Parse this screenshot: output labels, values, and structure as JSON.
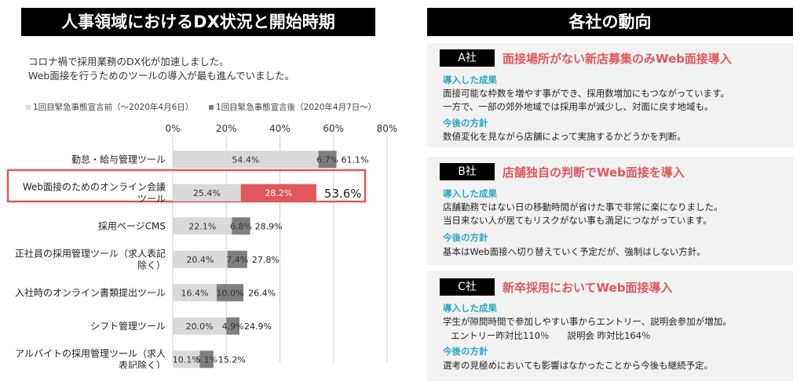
{
  "left_title": "人事領域におけるDX状況と開始時期",
  "intro": {
    "line1": "コロナ禍で採用業務のDX化が加速しました。",
    "line2": "Web面接を行うためのツールの導入が最も進んでいました。"
  },
  "legend": {
    "before": "1回目緊急事態宣言前（～2020年4月6日）",
    "after": "1回目緊急事態宣言後（2020年4月7日～）"
  },
  "colors": {
    "before": "#d9d9d9",
    "after": "#7f7f7f",
    "highlight": "#e0585c"
  },
  "chart_data": {
    "type": "bar",
    "orientation": "horizontal",
    "stacked": true,
    "x_ticks": [
      "0%",
      "20%",
      "40%",
      "60%",
      "80%"
    ],
    "xlim": [
      0,
      80
    ],
    "categories": [
      "勤怠・給与管理ツール",
      "Web面接のためのオンライン会議ツール",
      "採用ページCMS",
      "正社員の採用管理ツール（求人表記除く）",
      "入社時のオンライン書類提出ツール",
      "シフト管理ツール",
      "アルバイトの採用管理ツール（求人表記除く）"
    ],
    "category_lines": [
      [
        "勤怠・給与管理ツール"
      ],
      [
        "Web面接のためのオンライン会議",
        "ツール"
      ],
      [
        "採用ページCMS"
      ],
      [
        "正社員の採用管理ツール（求人表記",
        "除く）"
      ],
      [
        "入社時のオンライン書類提出ツール"
      ],
      [
        "シフト管理ツール"
      ],
      [
        "アルバイトの採用管理ツール（求人",
        "表記除く）"
      ]
    ],
    "series": [
      {
        "values": [
          54.4,
          25.4,
          22.1,
          20.4,
          16.4,
          20.0,
          10.1
        ],
        "labels": [
          "54.4%",
          "25.4%",
          "22.1%",
          "20.4%",
          "16.4%",
          "20.0%",
          "10.1%"
        ]
      },
      {
        "values": [
          6.7,
          28.2,
          6.8,
          7.4,
          10.0,
          4.9,
          5.1
        ],
        "labels": [
          "6.7%",
          "28.2%",
          "6.8%",
          "7.4%",
          "10.0%",
          "4.9%",
          "5.1%"
        ]
      }
    ],
    "totals": [
      61.1,
      53.6,
      28.9,
      27.8,
      26.4,
      24.9,
      15.2
    ],
    "total_labels": [
      "61.1%",
      "53.6%",
      "28.9%",
      "27.8%",
      "26.4%",
      "24.9%",
      "15.2%"
    ],
    "highlight_index": 1
  },
  "right_title": "各社の動向",
  "sub_result": "導入した成果",
  "sub_policy": "今後の方針",
  "companies": [
    {
      "tag": "A社",
      "headline": "面接場所がない新店募集のみWeb面接導入",
      "result_lines": [
        "面接可能な枠数を増やす事ができ、採用数増加にもつながっています。",
        "一方で、一部の郊外地域では採用率が減少し、対面に戻す地域も。"
      ],
      "policy_lines": [
        "数値変化を見ながら店舗によって実施するかどうかを判断。"
      ]
    },
    {
      "tag": "B社",
      "headline": "店舗独自の判断でWeb面接を導入",
      "result_lines": [
        "店舗勤務ではない日の移動時間が省けた事で非常に楽になりました。",
        "当日来ない人が居てもリスクがない事も満足につながっています。"
      ],
      "policy_lines": [
        "基本はWeb面接へ切り替えていく予定だが、強制はしない方針。"
      ]
    },
    {
      "tag": "C社",
      "headline": "新卒採用においてWeb面接導入",
      "result_lines": [
        "学生が隙間時間で参加しやすい事からエントリー、説明会参加が増加。",
        "エントリー昨対比110％　　説明会 昨対比164％"
      ],
      "policy_lines": [
        "選考の見極めにおいても影響はなかったことから今後も継続予定。"
      ]
    }
  ]
}
